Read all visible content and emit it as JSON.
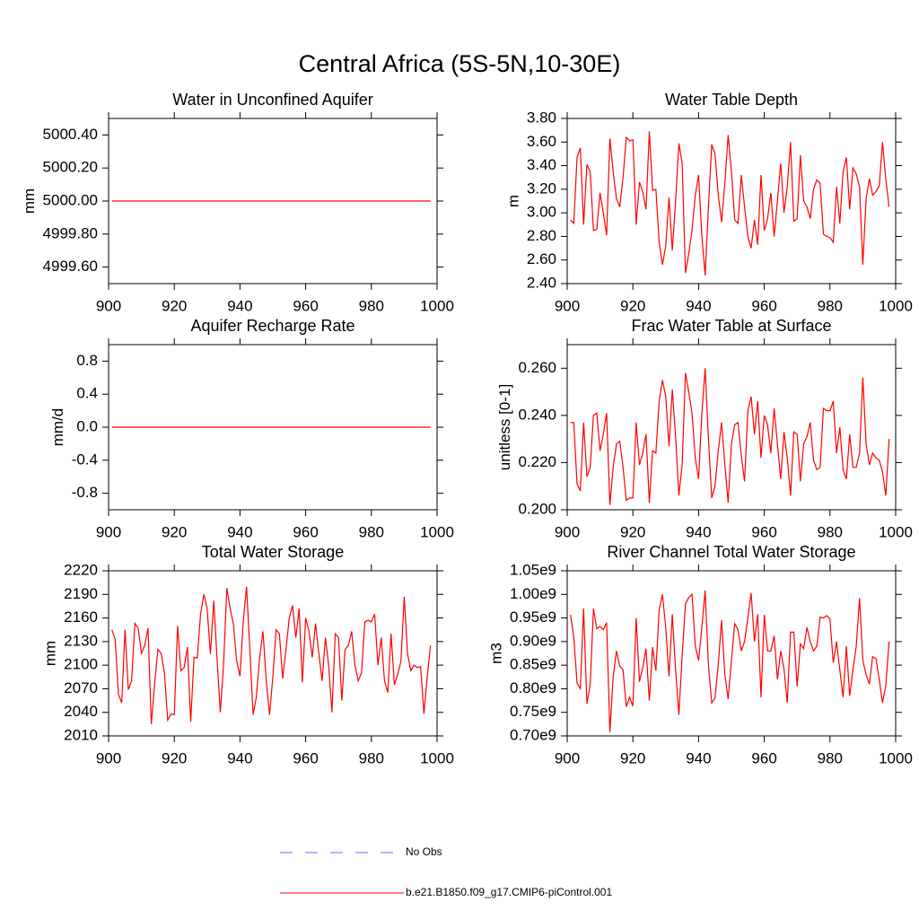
{
  "title": "Central Africa (5S-5N,10-30E)",
  "legend": [
    {
      "name": "No Obs",
      "color": "#6b6bff",
      "dashed": true
    },
    {
      "name": "b.e21.B1850.f09_g17.CMIP6-piControl.001",
      "color": "#ff0000",
      "dashed": false
    }
  ],
  "chart_data": [
    {
      "type": "line",
      "title": "Water in Unconfined Aquifer",
      "ylabel": "mm",
      "color": "#ff0000",
      "x": [
        901,
        998
      ],
      "values": [
        5000,
        5000
      ],
      "xlim": [
        900,
        1000
      ],
      "xticks": [
        900,
        920,
        940,
        960,
        980,
        1000
      ],
      "ylim": [
        4999.5,
        5000.5
      ],
      "yticks": [
        {
          "value": 4999.6,
          "label": "4999.60"
        },
        {
          "value": 4999.8,
          "label": "4999.80"
        },
        {
          "value": 5000,
          "label": "5000.00"
        },
        {
          "value": 5000.2,
          "label": "5000.20"
        },
        {
          "value": 5000.4,
          "label": "5000.40"
        }
      ]
    },
    {
      "type": "line",
      "title": "Water Table Depth",
      "ylabel": "m",
      "color": "#ff0000",
      "x": [
        901,
        902,
        903,
        904,
        905,
        906,
        907,
        908,
        909,
        910,
        911,
        912,
        913,
        914,
        915,
        916,
        917,
        918,
        919,
        920,
        921,
        922,
        923,
        924,
        925,
        926,
        927,
        928,
        929,
        930,
        931,
        932,
        933,
        934,
        935,
        936,
        937,
        938,
        939,
        940,
        941,
        942,
        943,
        944,
        945,
        946,
        947,
        948,
        949,
        950,
        951,
        952,
        953,
        954,
        955,
        956,
        957,
        958,
        959,
        960,
        961,
        962,
        963,
        964,
        965,
        966,
        967,
        968,
        969,
        970,
        971,
        972,
        973,
        974,
        975,
        976,
        977,
        978,
        979,
        980,
        981,
        982,
        983,
        984,
        985,
        986,
        987,
        988,
        989,
        990,
        991,
        992,
        993,
        994,
        995,
        996,
        997,
        998
      ],
      "values": [
        2.94,
        2.91,
        3.47,
        3.55,
        2.9,
        3.41,
        3.35,
        2.85,
        2.86,
        3.17,
        3.0,
        2.81,
        3.63,
        3.35,
        3.12,
        3.05,
        3.3,
        3.64,
        3.61,
        3.62,
        2.9,
        3.26,
        3.18,
        3.03,
        3.69,
        3.19,
        3.2,
        2.75,
        2.56,
        2.72,
        3.13,
        2.68,
        3.1,
        3.59,
        3.42,
        2.49,
        2.65,
        2.85,
        3.15,
        3.32,
        2.8,
        2.47,
        3.05,
        3.58,
        3.5,
        3.15,
        2.92,
        3.25,
        3.66,
        3.35,
        2.94,
        2.91,
        3.32,
        3.05,
        2.8,
        2.7,
        2.94,
        2.73,
        3.32,
        2.85,
        2.95,
        3.17,
        2.8,
        3.1,
        3.42,
        3.0,
        3.22,
        3.6,
        2.93,
        2.95,
        3.49,
        3.1,
        3.05,
        2.95,
        3.2,
        3.28,
        3.25,
        2.82,
        2.8,
        2.79,
        2.75,
        3.22,
        2.91,
        3.35,
        3.47,
        3.03,
        3.38,
        3.33,
        3.22,
        2.56,
        3.12,
        3.29,
        3.15,
        3.18,
        3.23,
        3.6,
        3.28,
        3.05
      ],
      "xlim": [
        900,
        1000
      ],
      "xticks": [
        900,
        920,
        940,
        960,
        980,
        1000
      ],
      "ylim": [
        2.4,
        3.8
      ],
      "yticks": [
        {
          "value": 2.4,
          "label": "2.40"
        },
        {
          "value": 2.6,
          "label": "2.60"
        },
        {
          "value": 2.8,
          "label": "2.80"
        },
        {
          "value": 3.0,
          "label": "3.00"
        },
        {
          "value": 3.2,
          "label": "3.20"
        },
        {
          "value": 3.4,
          "label": "3.40"
        },
        {
          "value": 3.6,
          "label": "3.60"
        },
        {
          "value": 3.8,
          "label": "3.80"
        }
      ]
    },
    {
      "type": "line",
      "title": "Aquifer Recharge Rate",
      "ylabel": "mm/d",
      "color": "#ff0000",
      "x": [
        901,
        998
      ],
      "values": [
        0,
        0
      ],
      "xlim": [
        900,
        1000
      ],
      "xticks": [
        900,
        920,
        940,
        960,
        980,
        1000
      ],
      "ylim": [
        -1,
        1
      ],
      "yticks": [
        -0.8,
        -0.4,
        {
          "value": 0,
          "label": "0.0"
        },
        0.4,
        0.8
      ]
    },
    {
      "type": "line",
      "title": "Frac Water Table at Surface",
      "ylabel": "unitless [0-1]",
      "color": "#ff0000",
      "x": [
        901,
        902,
        903,
        904,
        905,
        906,
        907,
        908,
        909,
        910,
        911,
        912,
        913,
        914,
        915,
        916,
        917,
        918,
        919,
        920,
        921,
        922,
        923,
        924,
        925,
        926,
        927,
        928,
        929,
        930,
        931,
        932,
        933,
        934,
        935,
        936,
        937,
        938,
        939,
        940,
        941,
        942,
        943,
        944,
        945,
        946,
        947,
        948,
        949,
        950,
        951,
        952,
        953,
        954,
        955,
        956,
        957,
        958,
        959,
        960,
        961,
        962,
        963,
        964,
        965,
        966,
        967,
        968,
        969,
        970,
        971,
        972,
        973,
        974,
        975,
        976,
        977,
        978,
        979,
        980,
        981,
        982,
        983,
        984,
        985,
        986,
        987,
        988,
        989,
        990,
        991,
        992,
        993,
        994,
        995,
        996,
        997,
        998
      ],
      "values": [
        0.237,
        0.237,
        0.211,
        0.208,
        0.237,
        0.214,
        0.218,
        0.24,
        0.241,
        0.225,
        0.232,
        0.241,
        0.202,
        0.218,
        0.228,
        0.229,
        0.218,
        0.204,
        0.205,
        0.205,
        0.237,
        0.219,
        0.224,
        0.232,
        0.203,
        0.225,
        0.224,
        0.246,
        0.255,
        0.248,
        0.227,
        0.251,
        0.231,
        0.206,
        0.219,
        0.258,
        0.25,
        0.241,
        0.222,
        0.213,
        0.241,
        0.26,
        0.23,
        0.205,
        0.21,
        0.225,
        0.237,
        0.219,
        0.203,
        0.228,
        0.236,
        0.237,
        0.223,
        0.212,
        0.242,
        0.248,
        0.232,
        0.246,
        0.222,
        0.24,
        0.236,
        0.224,
        0.243,
        0.228,
        0.213,
        0.233,
        0.222,
        0.206,
        0.233,
        0.232,
        0.212,
        0.228,
        0.231,
        0.237,
        0.221,
        0.217,
        0.218,
        0.243,
        0.242,
        0.242,
        0.246,
        0.224,
        0.235,
        0.217,
        0.213,
        0.232,
        0.218,
        0.218,
        0.224,
        0.256,
        0.228,
        0.219,
        0.224,
        0.222,
        0.221,
        0.216,
        0.206,
        0.23
      ],
      "xlim": [
        900,
        1000
      ],
      "xticks": [
        900,
        920,
        940,
        960,
        980,
        1000
      ],
      "ylim": [
        0.2,
        0.27
      ],
      "yticks": [
        {
          "value": 0.2,
          "label": "0.200"
        },
        {
          "value": 0.22,
          "label": "0.220"
        },
        {
          "value": 0.24,
          "label": "0.240"
        },
        {
          "value": 0.26,
          "label": "0.260"
        }
      ]
    },
    {
      "type": "line",
      "title": "Total Water Storage",
      "ylabel": "mm",
      "color": "#ff0000",
      "x": [
        901,
        902,
        903,
        904,
        905,
        906,
        907,
        908,
        909,
        910,
        911,
        912,
        913,
        914,
        915,
        916,
        917,
        918,
        919,
        920,
        921,
        922,
        923,
        924,
        925,
        926,
        927,
        928,
        929,
        930,
        931,
        932,
        933,
        934,
        935,
        936,
        937,
        938,
        939,
        940,
        941,
        942,
        943,
        944,
        945,
        946,
        947,
        948,
        949,
        950,
        951,
        952,
        953,
        954,
        955,
        956,
        957,
        958,
        959,
        960,
        961,
        962,
        963,
        964,
        965,
        966,
        967,
        968,
        969,
        970,
        971,
        972,
        973,
        974,
        975,
        976,
        977,
        978,
        979,
        980,
        981,
        982,
        983,
        984,
        985,
        986,
        987,
        988,
        989,
        990,
        991,
        992,
        993,
        994,
        995,
        996,
        997,
        998
      ],
      "values": [
        2145,
        2133,
        2063,
        2052,
        2145,
        2069,
        2080,
        2153,
        2147,
        2115,
        2125,
        2147,
        2025,
        2075,
        2120,
        2115,
        2090,
        2030,
        2038,
        2037,
        2150,
        2093,
        2097,
        2123,
        2028,
        2110,
        2109,
        2165,
        2190,
        2172,
        2114,
        2182,
        2110,
        2040,
        2100,
        2198,
        2172,
        2152,
        2105,
        2086,
        2155,
        2200,
        2120,
        2037,
        2060,
        2110,
        2143,
        2080,
        2037,
        2085,
        2145,
        2140,
        2083,
        2120,
        2160,
        2176,
        2135,
        2172,
        2078,
        2160,
        2143,
        2110,
        2153,
        2115,
        2080,
        2135,
        2100,
        2040,
        2140,
        2135,
        2055,
        2120,
        2125,
        2143,
        2100,
        2080,
        2090,
        2155,
        2157,
        2155,
        2165,
        2100,
        2135,
        2080,
        2065,
        2140,
        2075,
        2088,
        2105,
        2187,
        2115,
        2093,
        2100,
        2097,
        2098,
        2038,
        2085,
        2125
      ],
      "xlim": [
        900,
        1000
      ],
      "xticks": [
        900,
        920,
        940,
        960,
        980,
        1000
      ],
      "ylim": [
        2010,
        2220
      ],
      "yticks": [
        2010,
        2040,
        2070,
        2100,
        2130,
        2160,
        2190,
        2220
      ]
    },
    {
      "type": "line",
      "title": "River Channel Total Water Storage",
      "ylabel": "m3",
      "color": "#ff0000",
      "x": [
        901,
        902,
        903,
        904,
        905,
        906,
        907,
        908,
        909,
        910,
        911,
        912,
        913,
        914,
        915,
        916,
        917,
        918,
        919,
        920,
        921,
        922,
        923,
        924,
        925,
        926,
        927,
        928,
        929,
        930,
        931,
        932,
        933,
        934,
        935,
        936,
        937,
        938,
        939,
        940,
        941,
        942,
        943,
        944,
        945,
        946,
        947,
        948,
        949,
        950,
        951,
        952,
        953,
        954,
        955,
        956,
        957,
        958,
        959,
        960,
        961,
        962,
        963,
        964,
        965,
        966,
        967,
        968,
        969,
        970,
        971,
        972,
        973,
        974,
        975,
        976,
        977,
        978,
        979,
        980,
        981,
        982,
        983,
        984,
        985,
        986,
        987,
        988,
        989,
        990,
        991,
        992,
        993,
        994,
        995,
        996,
        997,
        998
      ],
      "values": [
        957000000,
        910000000,
        812000000,
        800000000,
        970000000,
        768000000,
        808000000,
        970000000,
        927000000,
        932000000,
        925000000,
        940000000,
        708000000,
        825000000,
        880000000,
        848000000,
        840000000,
        762000000,
        782000000,
        763000000,
        950000000,
        815000000,
        845000000,
        885000000,
        775000000,
        888000000,
        838000000,
        968000000,
        1000000000,
        930000000,
        826000000,
        958000000,
        840000000,
        745000000,
        870000000,
        980000000,
        993000000,
        1000000000,
        890000000,
        860000000,
        930000000,
        1008000000,
        850000000,
        770000000,
        780000000,
        852000000,
        945000000,
        830000000,
        778000000,
        860000000,
        938000000,
        925000000,
        880000000,
        900000000,
        950000000,
        1003000000,
        900000000,
        958000000,
        782000000,
        957000000,
        880000000,
        880000000,
        912000000,
        820000000,
        880000000,
        842000000,
        770000000,
        920000000,
        920000000,
        805000000,
        895000000,
        885000000,
        930000000,
        900000000,
        880000000,
        890000000,
        952000000,
        950000000,
        955000000,
        948000000,
        855000000,
        900000000,
        840000000,
        782000000,
        890000000,
        785000000,
        840000000,
        890000000,
        992000000,
        860000000,
        830000000,
        810000000,
        868000000,
        864000000,
        820000000,
        770000000,
        808000000,
        900000000
      ],
      "xlim": [
        900,
        1000
      ],
      "xticks": [
        900,
        920,
        940,
        960,
        980,
        1000
      ],
      "ylim": [
        700000000,
        1050000000
      ],
      "yticks": [
        {
          "value": 700000000,
          "label": "0.70e9"
        },
        {
          "value": 750000000,
          "label": "0.75e9"
        },
        {
          "value": 800000000,
          "label": "0.80e9"
        },
        {
          "value": 850000000,
          "label": "0.85e9"
        },
        {
          "value": 900000000,
          "label": "0.90e9"
        },
        {
          "value": 950000000,
          "label": "0.95e9"
        },
        {
          "value": 1000000000,
          "label": "1.00e9"
        },
        {
          "value": 1050000000,
          "label": "1.05e9"
        }
      ]
    }
  ]
}
